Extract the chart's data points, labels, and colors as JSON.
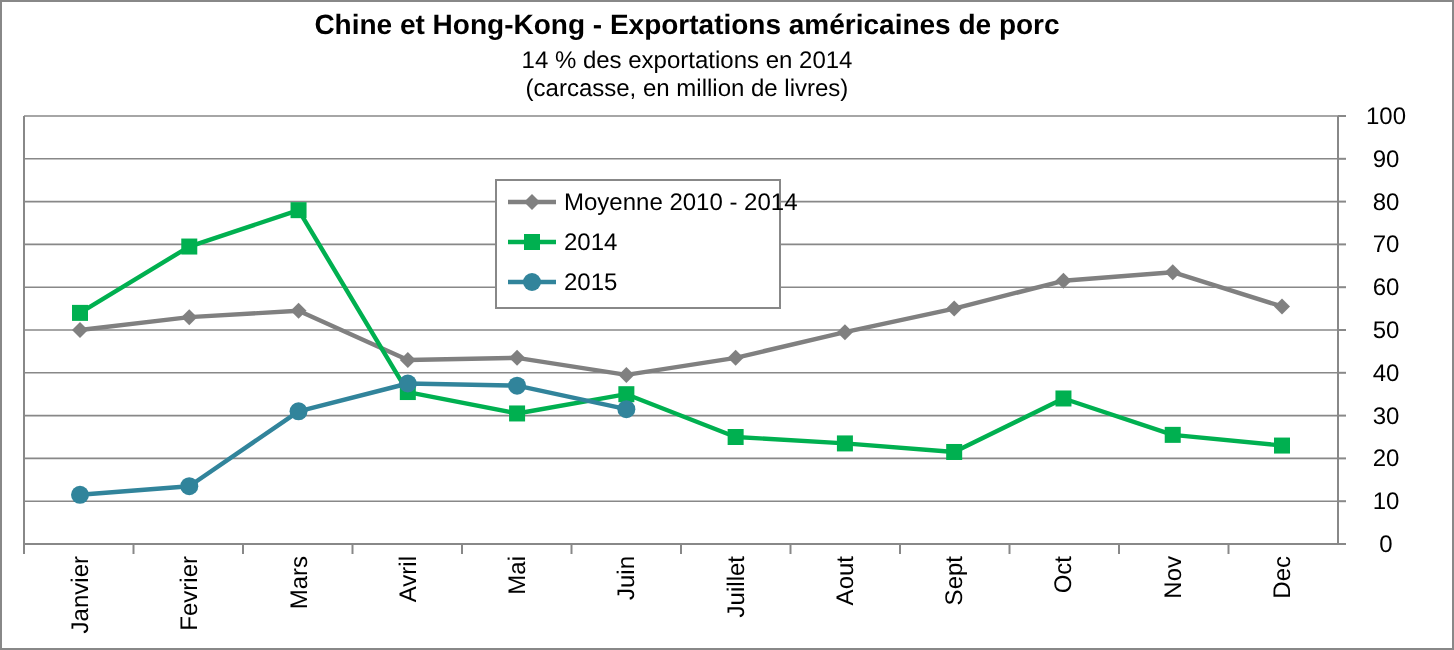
{
  "chart_data": {
    "type": "line",
    "title": "Chine et Hong-Kong - Exportations américaines de porc",
    "subtitle": "14 % des exportations en 2014\n(carcasse, en million de livres)",
    "categories": [
      "Janvier",
      "Fevrier",
      "Mars",
      "Avril",
      "Mai",
      "Juin",
      "Juillet",
      "Aout",
      "Sept",
      "Oct",
      "Nov",
      "Dec"
    ],
    "series": [
      {
        "name": "Moyenne 2010 - 2014",
        "color": "#808080",
        "marker": "diamond",
        "values": [
          50,
          53,
          54.5,
          43,
          43.5,
          39.5,
          43.5,
          49.5,
          55,
          61.5,
          63.5,
          55.5
        ]
      },
      {
        "name": "2014",
        "color": "#00b050",
        "marker": "square",
        "values": [
          54,
          69.5,
          78,
          35.5,
          30.5,
          35,
          25,
          23.5,
          21.5,
          34,
          25.5,
          23
        ]
      },
      {
        "name": "2015",
        "color": "#31849b",
        "marker": "circle",
        "values": [
          11.5,
          13.5,
          31,
          37.5,
          37,
          31.5,
          null,
          null,
          null,
          null,
          null,
          null
        ]
      }
    ],
    "ylim": [
      0,
      100
    ],
    "yticks": [
      0,
      10,
      20,
      30,
      40,
      50,
      60,
      70,
      80,
      90,
      100
    ],
    "grid": "y",
    "legend": "top",
    "line_style": "solid"
  }
}
